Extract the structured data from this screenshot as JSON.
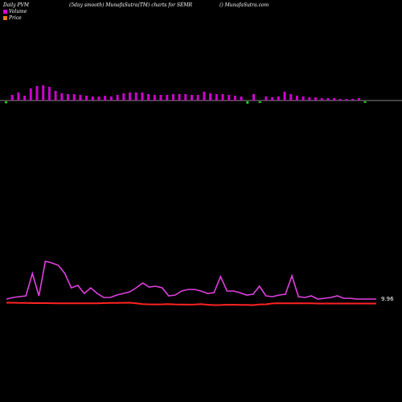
{
  "header": {
    "left": "Daily PVM",
    "middle": "(5day smooth) MunafaSutra(TM) charts for SEMR",
    "right": "() MunafaSutra.com"
  },
  "legend": [
    {
      "label": "Volume",
      "color": "#d400d4"
    },
    {
      "label": "Price",
      "color": "#e08020"
    }
  ],
  "colors": {
    "volume_bar": "#cc00cc",
    "volume_down_bar": "#22cc22",
    "pvm_line": "#e040e0",
    "price_line": "#ff2222",
    "axis_line": "#888888"
  },
  "chart_data": {
    "type": "line",
    "price_tick_label": "9.96",
    "volume_bars": [
      {
        "v": 5,
        "dir": "down"
      },
      {
        "v": 7,
        "dir": "up"
      },
      {
        "v": 10,
        "dir": "up"
      },
      {
        "v": 6,
        "dir": "up"
      },
      {
        "v": 15,
        "dir": "up"
      },
      {
        "v": 18,
        "dir": "up"
      },
      {
        "v": 19,
        "dir": "up"
      },
      {
        "v": 17,
        "dir": "up"
      },
      {
        "v": 12,
        "dir": "up"
      },
      {
        "v": 9,
        "dir": "up"
      },
      {
        "v": 8,
        "dir": "up"
      },
      {
        "v": 8,
        "dir": "up"
      },
      {
        "v": 7,
        "dir": "up"
      },
      {
        "v": 6,
        "dir": "up"
      },
      {
        "v": 5,
        "dir": "up"
      },
      {
        "v": 5,
        "dir": "up"
      },
      {
        "v": 6,
        "dir": "up"
      },
      {
        "v": 5,
        "dir": "up"
      },
      {
        "v": 7,
        "dir": "up"
      },
      {
        "v": 9,
        "dir": "up"
      },
      {
        "v": 10,
        "dir": "up"
      },
      {
        "v": 10,
        "dir": "up"
      },
      {
        "v": 10,
        "dir": "up"
      },
      {
        "v": 8,
        "dir": "up"
      },
      {
        "v": 7,
        "dir": "up"
      },
      {
        "v": 7,
        "dir": "up"
      },
      {
        "v": 7,
        "dir": "up"
      },
      {
        "v": 8,
        "dir": "up"
      },
      {
        "v": 8,
        "dir": "up"
      },
      {
        "v": 8,
        "dir": "up"
      },
      {
        "v": 7,
        "dir": "up"
      },
      {
        "v": 7,
        "dir": "up"
      },
      {
        "v": 11,
        "dir": "up"
      },
      {
        "v": 9,
        "dir": "up"
      },
      {
        "v": 8,
        "dir": "up"
      },
      {
        "v": 8,
        "dir": "up"
      },
      {
        "v": 7,
        "dir": "up"
      },
      {
        "v": 6,
        "dir": "up"
      },
      {
        "v": 5,
        "dir": "up"
      },
      {
        "v": 6,
        "dir": "down"
      },
      {
        "v": 8,
        "dir": "up"
      },
      {
        "v": 3,
        "dir": "down"
      },
      {
        "v": 5,
        "dir": "up"
      },
      {
        "v": 4,
        "dir": "up"
      },
      {
        "v": 5,
        "dir": "up"
      },
      {
        "v": 11,
        "dir": "up"
      },
      {
        "v": 8,
        "dir": "up"
      },
      {
        "v": 6,
        "dir": "up"
      },
      {
        "v": 5,
        "dir": "up"
      },
      {
        "v": 4,
        "dir": "up"
      },
      {
        "v": 4,
        "dir": "up"
      },
      {
        "v": 3,
        "dir": "up"
      },
      {
        "v": 3,
        "dir": "up"
      },
      {
        "v": 3,
        "dir": "up"
      },
      {
        "v": 2,
        "dir": "up"
      },
      {
        "v": 2,
        "dir": "up"
      },
      {
        "v": 2,
        "dir": "up"
      },
      {
        "v": 3,
        "dir": "up"
      },
      {
        "v": 2,
        "dir": "down"
      }
    ],
    "pvm_series": [
      372,
      370,
      369,
      368,
      340,
      368,
      325,
      327,
      330,
      340,
      358,
      355,
      365,
      358,
      365,
      370,
      370,
      367,
      365,
      363,
      358,
      352,
      357,
      356,
      358,
      368,
      367,
      362,
      360,
      360,
      362,
      365,
      364,
      344,
      362,
      362,
      364,
      367,
      366,
      356,
      368,
      369,
      367,
      366,
      343,
      369,
      370,
      368,
      372,
      371,
      370,
      368,
      371,
      371,
      372,
      372,
      372,
      372
    ],
    "price_series": [
      376.5,
      376.5,
      376.7,
      376.8,
      377,
      377,
      377,
      377.1,
      377.2,
      377.2,
      377.2,
      377.3,
      377.3,
      377.3,
      377.2,
      377,
      376.8,
      376.8,
      376.6,
      376.5,
      377.2,
      378.2,
      378.5,
      378.6,
      378.5,
      378.2,
      378.6,
      378.8,
      378.9,
      378.8,
      378.3,
      379,
      379.5,
      379.4,
      379,
      379,
      379.2,
      379.3,
      379.5,
      378.6,
      378.5,
      377.4,
      377.3,
      377.2,
      377.2,
      377.3,
      377.3,
      377.3,
      377.5,
      377.5,
      377.5,
      377.5,
      377.5,
      377.5,
      377.5,
      377.5,
      377.5,
      377.5
    ]
  }
}
